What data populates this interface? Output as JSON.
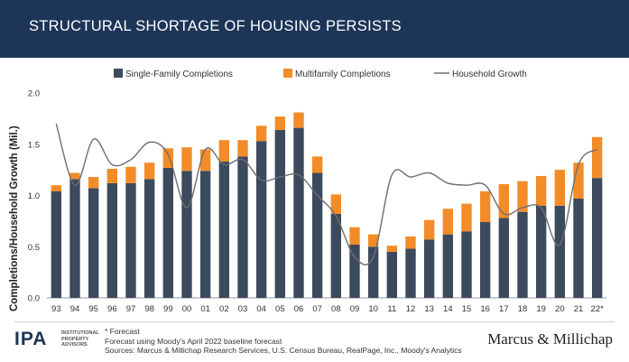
{
  "header": {
    "title": "STRUCTURAL SHORTAGE OF HOUSING PERSISTS"
  },
  "chart_data": {
    "type": "bar",
    "stacked": true,
    "title": "STRUCTURAL SHORTAGE OF HOUSING PERSISTS",
    "xlabel": "",
    "ylabel": "Completions/Household Growth (Mil.)",
    "ylim": [
      0,
      2.0
    ],
    "yticks": [
      "0.0",
      "0.5",
      "1.0",
      "1.5",
      "2.0"
    ],
    "categories": [
      "93",
      "94",
      "95",
      "96",
      "97",
      "98",
      "99",
      "00",
      "01",
      "02",
      "03",
      "04",
      "05",
      "06",
      "07",
      "08",
      "09",
      "10",
      "11",
      "12",
      "13",
      "14",
      "15",
      "16",
      "17",
      "18",
      "19",
      "20",
      "21",
      "22*"
    ],
    "legend_position": "top",
    "grid": false,
    "series": [
      {
        "name": "Single-Family Completions",
        "kind": "bar",
        "color": "#3c4a5e",
        "values": [
          1.04,
          1.16,
          1.07,
          1.12,
          1.12,
          1.16,
          1.27,
          1.24,
          1.24,
          1.33,
          1.38,
          1.53,
          1.64,
          1.66,
          1.22,
          0.82,
          0.52,
          0.5,
          0.45,
          0.48,
          0.57,
          0.62,
          0.65,
          0.74,
          0.78,
          0.84,
          0.9,
          0.9,
          0.97,
          1.17
        ]
      },
      {
        "name": "Multifamily Completions",
        "kind": "bar",
        "color": "#f28c28",
        "values": [
          0.06,
          0.06,
          0.11,
          0.14,
          0.16,
          0.16,
          0.19,
          0.23,
          0.21,
          0.21,
          0.16,
          0.15,
          0.13,
          0.15,
          0.16,
          0.19,
          0.17,
          0.12,
          0.06,
          0.12,
          0.19,
          0.25,
          0.27,
          0.3,
          0.33,
          0.3,
          0.29,
          0.35,
          0.35,
          0.4
        ]
      },
      {
        "name": "Household Growth",
        "kind": "line",
        "color": "#6e6e6e",
        "values": [
          1.7,
          1.1,
          1.55,
          1.3,
          1.35,
          1.52,
          1.4,
          0.88,
          1.45,
          1.3,
          1.35,
          1.15,
          1.18,
          1.2,
          1.0,
          0.8,
          0.4,
          0.4,
          1.2,
          1.18,
          1.22,
          1.12,
          1.1,
          1.1,
          0.82,
          0.88,
          0.88,
          0.52,
          1.3,
          1.45
        ]
      }
    ]
  },
  "footer": {
    "ipa_logo": "IPA",
    "ipa_sub": "INSTITUTIONAL PROPERTY ADVISORS",
    "notes": [
      "* Forecast",
      "Forecast using Moody's April 2022 baseline forecast",
      "Sources: Marcus & Millichap Research Services, U.S. Census Bureau, RealPage, Inc., Moody's Analytics"
    ],
    "brand_logo": "Marcus & Millichap"
  }
}
